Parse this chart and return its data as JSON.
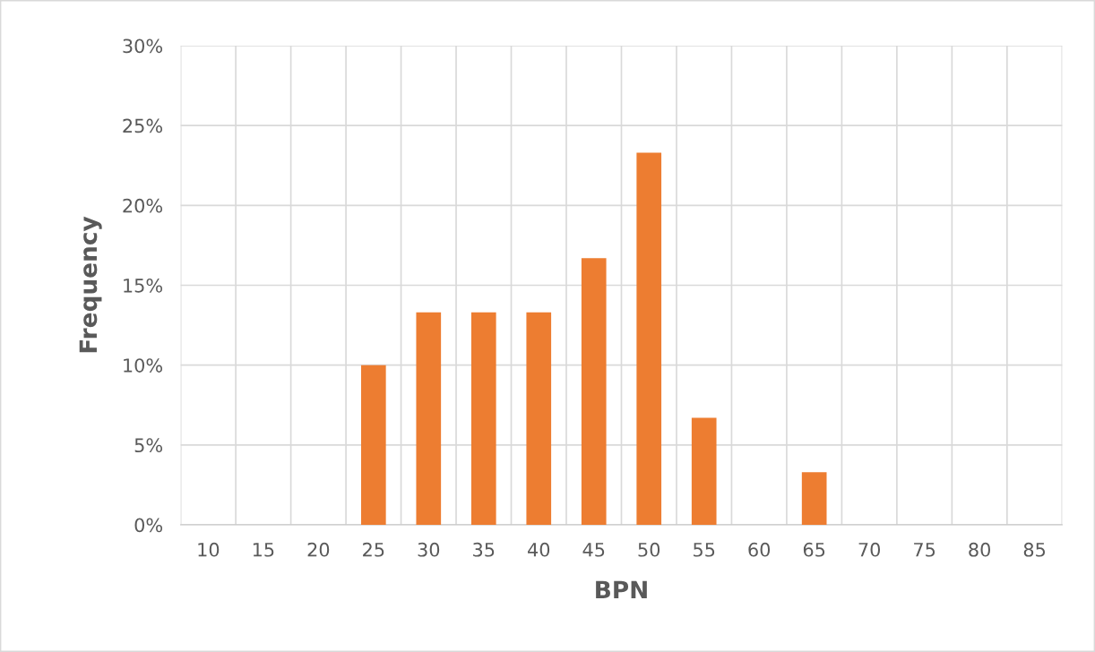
{
  "chart_data": {
    "type": "bar",
    "xlabel": "BPN",
    "ylabel": "Frequency",
    "categories": [
      "10",
      "15",
      "20",
      "25",
      "30",
      "35",
      "40",
      "45",
      "50",
      "55",
      "60",
      "65",
      "70",
      "75",
      "80",
      "85"
    ],
    "values": [
      0,
      0,
      0,
      10,
      13.3,
      13.3,
      13.3,
      16.7,
      23.3,
      6.7,
      0,
      3.3,
      0,
      0,
      0,
      0
    ],
    "color": "#ed7d31",
    "ylim": [
      0,
      30
    ],
    "yticks": [
      {
        "value": 0,
        "label": "0%"
      },
      {
        "value": 5,
        "label": "5%"
      },
      {
        "value": 10,
        "label": "10%"
      },
      {
        "value": 15,
        "label": "15%"
      },
      {
        "value": 20,
        "label": "20%"
      },
      {
        "value": 25,
        "label": "25%"
      },
      {
        "value": 30,
        "label": "30%"
      }
    ],
    "grid": true
  }
}
